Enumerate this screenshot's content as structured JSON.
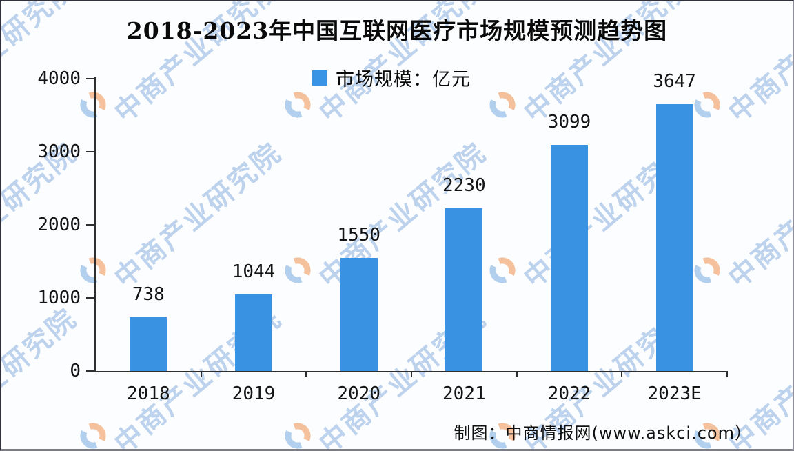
{
  "frame": {
    "title": "2018-2023年中国互联网医疗市场规模预测趋势图"
  },
  "legend": {
    "label": "市场规模：亿元",
    "swatch_color": "#3a94e6"
  },
  "footer": {
    "credit": "制图：中商情报网(www.askci.com）"
  },
  "watermark": {
    "text": "中商产业研究院",
    "text_color": "#bdd2ec",
    "logo_orange": "#f29d62",
    "logo_blue": "#86b4e4"
  },
  "chart_data": {
    "type": "bar",
    "title": "2018-2023年中国互联网医疗市场规模预测趋势图",
    "categories": [
      "2018",
      "2019",
      "2020",
      "2021",
      "2022",
      "2023E"
    ],
    "values": [
      738,
      1044,
      1550,
      2230,
      3099,
      3647
    ],
    "series_name": "市场规模：亿元",
    "unit": "亿元",
    "ylim": [
      0,
      4000
    ],
    "yticks": [
      0,
      1000,
      2000,
      3000,
      4000
    ],
    "bar_color": "#3a92e2",
    "grid": false,
    "legend_position": "top-center",
    "source_note": "制图：中商情报网(www.askci.com）"
  }
}
